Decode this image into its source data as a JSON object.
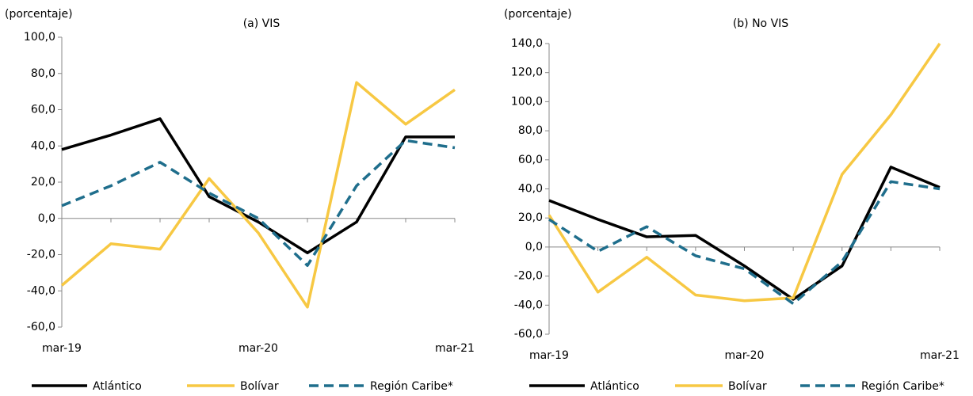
{
  "chart_data": [
    {
      "type": "line",
      "title": "(a) VIS",
      "y_label": "(porcentaje)",
      "categories": [
        "mar-19",
        null,
        null,
        null,
        "mar-20",
        null,
        null,
        null,
        "mar-21"
      ],
      "series": [
        {
          "name": "Atlántico",
          "color": "#000000",
          "dashed": false,
          "values": [
            38,
            46,
            55,
            12,
            -2,
            -19,
            -2,
            45,
            45
          ]
        },
        {
          "name": "Bolívar",
          "color": "#f7c843",
          "dashed": false,
          "values": [
            -37,
            -14,
            -17,
            22,
            -8,
            -49,
            75,
            52,
            71
          ]
        },
        {
          "name": "Región Caribe*",
          "color": "#1f6e8c",
          "dashed": true,
          "values": [
            7,
            18,
            31,
            14,
            0,
            -26,
            18,
            43,
            39
          ]
        }
      ],
      "ylim": [
        -60,
        100
      ],
      "yticks": [
        {
          "value": -60,
          "label": "-60,0"
        },
        {
          "value": -40,
          "label": "-40,0"
        },
        {
          "value": -20,
          "label": "-20,0"
        },
        {
          "value": 0,
          "label": "0,0"
        },
        {
          "value": 20,
          "label": "20,0"
        },
        {
          "value": 40,
          "label": "40,0"
        },
        {
          "value": 60,
          "label": "60,0"
        },
        {
          "value": 80,
          "label": "80,0"
        },
        {
          "value": 100,
          "label": "100,0"
        }
      ]
    },
    {
      "type": "line",
      "title": "(b) No VIS",
      "y_label": "(porcentaje)",
      "categories": [
        "mar-19",
        null,
        null,
        null,
        "mar-20",
        null,
        null,
        null,
        "mar-21"
      ],
      "series": [
        {
          "name": "Atlántico",
          "color": "#000000",
          "dashed": false,
          "values": [
            32,
            19,
            7,
            8,
            -13,
            -36,
            -13,
            55,
            41
          ]
        },
        {
          "name": "Bolívar",
          "color": "#f7c843",
          "dashed": false,
          "values": [
            22,
            -31,
            -7,
            -33,
            -37,
            -35,
            50,
            91,
            140
          ]
        },
        {
          "name": "Región Caribe*",
          "color": "#1f6e8c",
          "dashed": true,
          "values": [
            19,
            -3,
            14,
            -6,
            -15,
            -39,
            -10,
            45,
            40
          ]
        }
      ],
      "ylim": [
        -60,
        140
      ],
      "yticks": [
        {
          "value": -60,
          "label": "-60,0"
        },
        {
          "value": -40,
          "label": "-40,0"
        },
        {
          "value": -20,
          "label": "-20,0"
        },
        {
          "value": 0,
          "label": "0,0"
        },
        {
          "value": 20,
          "label": "20,0"
        },
        {
          "value": 40,
          "label": "40,0"
        },
        {
          "value": 60,
          "label": "60,0"
        },
        {
          "value": 80,
          "label": "80,0"
        },
        {
          "value": 100,
          "label": "100,0"
        },
        {
          "value": 120,
          "label": "120,0"
        },
        {
          "value": 140,
          "label": "140,0"
        }
      ]
    }
  ]
}
